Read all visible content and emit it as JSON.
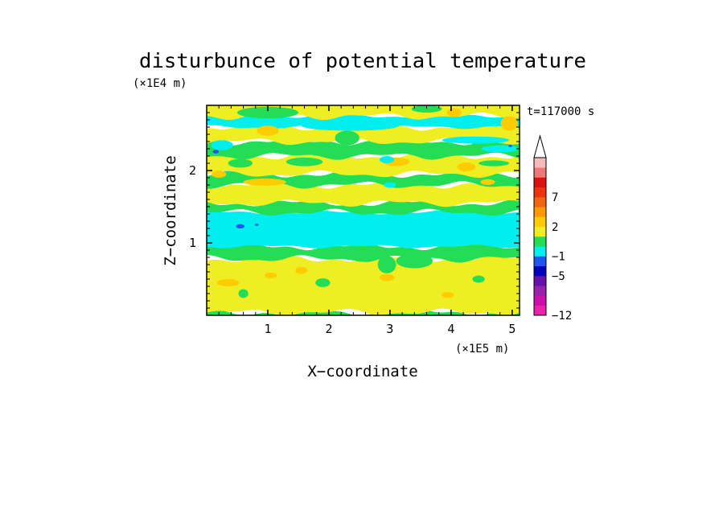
{
  "chart_data": {
    "type": "heatmap",
    "title": "disturbunce of potential temperature",
    "time_label": "t=117000 s",
    "xlabel": "X−coordinate",
    "ylabel": "Z−coordinate",
    "x_scale_label": "(×1E5 m)",
    "y_scale_label": "(×1E4 m)",
    "xlim": [
      0,
      5.12
    ],
    "ylim": [
      0,
      2.9
    ],
    "x_ticks": [
      {
        "v": 1,
        "label": "1"
      },
      {
        "v": 2,
        "label": "2"
      },
      {
        "v": 3,
        "label": "3"
      },
      {
        "v": 4,
        "label": "4"
      },
      {
        "v": 5,
        "label": "5"
      }
    ],
    "y_ticks": [
      {
        "v": 1,
        "label": "1"
      },
      {
        "v": 2,
        "label": "2"
      }
    ],
    "colorbar": {
      "levels": [
        {
          "label": "−12",
          "color": "#ee22aa"
        },
        {
          "label": "",
          "color": "#cc11aa"
        },
        {
          "label": "",
          "color": "#9922aa"
        },
        {
          "label": "",
          "color": "#6611aa"
        },
        {
          "label": "−5",
          "color": "#0000bb"
        },
        {
          "label": "",
          "color": "#2255ee"
        },
        {
          "label": "−1",
          "color": "#00eeee"
        },
        {
          "label": "",
          "color": "#22dd55"
        },
        {
          "label": "",
          "color": "#eeee22"
        },
        {
          "label": "2",
          "color": "#ffcc00"
        },
        {
          "label": "",
          "color": "#ff9900"
        },
        {
          "label": "",
          "color": "#ee6611"
        },
        {
          "label": "7",
          "color": "#ee3311"
        },
        {
          "label": "",
          "color": "#dd1111"
        },
        {
          "label": "",
          "color": "#ee7777"
        },
        {
          "label": "",
          "color": "#f5bbbb"
        }
      ]
    },
    "bands": [
      {
        "z0": 0.0,
        "z1": 0.04,
        "category": "green"
      },
      {
        "z0": 0.04,
        "z1": 0.78,
        "category": "yellow"
      },
      {
        "z0": 0.78,
        "z1": 0.95,
        "category": "green"
      },
      {
        "z0": 0.95,
        "z1": 1.42,
        "category": "cyan"
      },
      {
        "z0": 1.42,
        "z1": 1.55,
        "category": "green"
      },
      {
        "z0": 1.55,
        "z1": 1.8,
        "category": "yellow"
      },
      {
        "z0": 1.8,
        "z1": 1.95,
        "category": "green"
      },
      {
        "z0": 1.95,
        "z1": 2.2,
        "category": "yellow"
      },
      {
        "z0": 2.2,
        "z1": 2.4,
        "category": "green"
      },
      {
        "z0": 2.4,
        "z1": 2.6,
        "category": "yellow"
      },
      {
        "z0": 2.6,
        "z1": 2.75,
        "category": "cyan"
      },
      {
        "z0": 2.75,
        "z1": 2.9,
        "category": "yellow"
      }
    ],
    "blobs": [
      {
        "x": 0.35,
        "z": 0.45,
        "rx": 0.18,
        "rz": 0.05,
        "category": "orange"
      },
      {
        "x": 1.05,
        "z": 0.55,
        "rx": 0.1,
        "rz": 0.04,
        "category": "orange"
      },
      {
        "x": 1.55,
        "z": 0.62,
        "rx": 0.1,
        "rz": 0.05,
        "category": "orange"
      },
      {
        "x": 2.95,
        "z": 0.52,
        "rx": 0.12,
        "rz": 0.05,
        "category": "orange"
      },
      {
        "x": 3.95,
        "z": 0.28,
        "rx": 0.1,
        "rz": 0.04,
        "category": "orange"
      },
      {
        "x": 0.95,
        "z": 1.84,
        "rx": 0.35,
        "rz": 0.05,
        "category": "orange"
      },
      {
        "x": 3.1,
        "z": 2.12,
        "rx": 0.22,
        "rz": 0.06,
        "category": "orange"
      },
      {
        "x": 4.25,
        "z": 2.05,
        "rx": 0.15,
        "rz": 0.06,
        "category": "orange"
      },
      {
        "x": 0.2,
        "z": 1.95,
        "rx": 0.12,
        "rz": 0.05,
        "category": "orange"
      },
      {
        "x": 4.6,
        "z": 1.84,
        "rx": 0.12,
        "rz": 0.04,
        "category": "orange"
      },
      {
        "x": 4.95,
        "z": 2.65,
        "rx": 0.14,
        "rz": 0.1,
        "category": "orange"
      },
      {
        "x": 4.05,
        "z": 2.8,
        "rx": 0.12,
        "rz": 0.06,
        "category": "orange"
      },
      {
        "x": 1.0,
        "z": 2.55,
        "rx": 0.18,
        "rz": 0.07,
        "category": "orange"
      },
      {
        "x": 0.25,
        "z": 2.35,
        "rx": 0.18,
        "rz": 0.07,
        "category": "cyan"
      },
      {
        "x": 2.35,
        "z": 2.62,
        "rx": 0.8,
        "rz": 0.07,
        "category": "cyan"
      },
      {
        "x": 4.4,
        "z": 2.42,
        "rx": 0.55,
        "rz": 0.05,
        "category": "cyan"
      },
      {
        "x": 4.8,
        "z": 2.3,
        "rx": 0.3,
        "rz": 0.05,
        "category": "cyan"
      },
      {
        "x": 3.0,
        "z": 1.8,
        "rx": 0.1,
        "rz": 0.04,
        "category": "cyan"
      },
      {
        "x": 2.95,
        "z": 2.15,
        "rx": 0.12,
        "rz": 0.05,
        "category": "cyan"
      },
      {
        "x": 0.55,
        "z": 2.1,
        "rx": 0.2,
        "rz": 0.06,
        "category": "green"
      },
      {
        "x": 1.6,
        "z": 2.12,
        "rx": 0.3,
        "rz": 0.06,
        "category": "green"
      },
      {
        "x": 2.3,
        "z": 2.45,
        "rx": 0.2,
        "rz": 0.1,
        "category": "green"
      },
      {
        "x": 3.8,
        "z": 2.25,
        "rx": 0.3,
        "rz": 0.05,
        "category": "green"
      },
      {
        "x": 4.7,
        "z": 2.1,
        "rx": 0.25,
        "rz": 0.04,
        "category": "green"
      },
      {
        "x": 1.9,
        "z": 0.45,
        "rx": 0.12,
        "rz": 0.06,
        "category": "green"
      },
      {
        "x": 3.4,
        "z": 0.75,
        "rx": 0.3,
        "rz": 0.1,
        "category": "green"
      },
      {
        "x": 2.95,
        "z": 0.7,
        "rx": 0.15,
        "rz": 0.12,
        "category": "green"
      },
      {
        "x": 0.6,
        "z": 0.3,
        "rx": 0.08,
        "rz": 0.06,
        "category": "green"
      },
      {
        "x": 4.45,
        "z": 0.5,
        "rx": 0.1,
        "rz": 0.05,
        "category": "green"
      },
      {
        "x": 1.0,
        "z": 2.8,
        "rx": 0.5,
        "rz": 0.08,
        "category": "green"
      },
      {
        "x": 3.6,
        "z": 2.85,
        "rx": 0.25,
        "rz": 0.05,
        "category": "green"
      },
      {
        "x": 0.15,
        "z": 2.26,
        "rx": 0.05,
        "rz": 0.025,
        "category": "blue"
      },
      {
        "x": 0.55,
        "z": 1.23,
        "rx": 0.07,
        "rz": 0.03,
        "category": "blue"
      },
      {
        "x": 0.82,
        "z": 1.25,
        "rx": 0.03,
        "rz": 0.015,
        "category": "blue"
      },
      {
        "x": 4.97,
        "z": 2.34,
        "rx": 0.03,
        "rz": 0.015,
        "category": "blue"
      }
    ]
  }
}
